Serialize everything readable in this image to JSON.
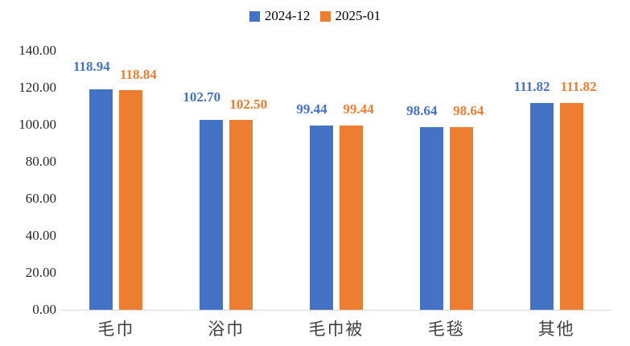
{
  "chart_data": {
    "type": "bar",
    "title": "",
    "xlabel": "",
    "ylabel": "",
    "categories": [
      "毛巾",
      "浴巾",
      "毛巾被",
      "毛毯",
      "其他"
    ],
    "series": [
      {
        "name": "2024-12",
        "color": "#4472C4",
        "values": [
          118.94,
          102.7,
          99.44,
          98.64,
          111.82
        ],
        "value_labels": [
          "118.94",
          "102.70",
          "99.44",
          "98.64",
          "111.82"
        ]
      },
      {
        "name": "2025-01",
        "color": "#ED7D31",
        "values": [
          118.84,
          102.5,
          99.44,
          98.64,
          111.82
        ],
        "value_labels": [
          "118.84",
          "102.50",
          "99.44",
          "98.64",
          "111.82"
        ]
      }
    ],
    "ylim": [
      0,
      140
    ],
    "ytick_step": 20,
    "ytick_labels": [
      "0.00",
      "20.00",
      "40.00",
      "60.00",
      "80.00",
      "100.00",
      "120.00",
      "140.00"
    ],
    "grid": false,
    "legend_position": "top",
    "axis_line_color": "#D9D9D9",
    "tick_label_color": "#262626",
    "category_label_color": "#404040",
    "background_color": "#FFFFFF"
  }
}
